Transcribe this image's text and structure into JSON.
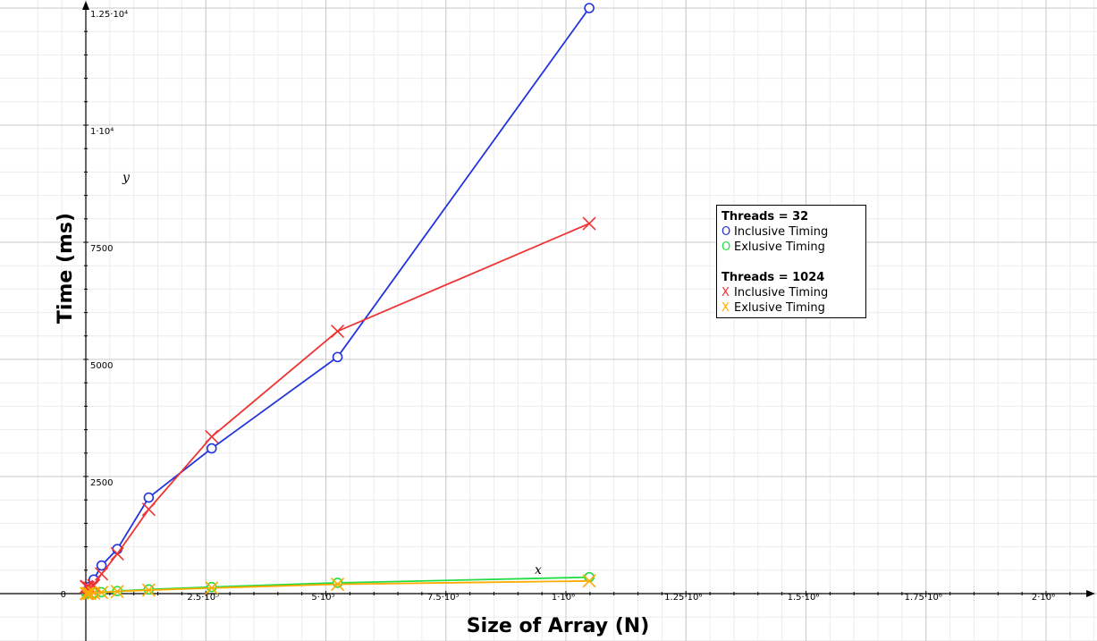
{
  "chart_data": {
    "type": "line",
    "xlabel": "Size of Array (N)",
    "ylabel": "Time (ms)",
    "x_var": "x",
    "y_var": "y",
    "xlim": [
      -100000,
      2100000
    ],
    "ylim": [
      -500,
      12500
    ],
    "grid": true,
    "legend_position": "right",
    "x_ticks": [
      {
        "value": 250000,
        "label": "2.5·10⁵"
      },
      {
        "value": 500000,
        "label": "5·10⁵"
      },
      {
        "value": 750000,
        "label": "7.5·10⁵"
      },
      {
        "value": 1000000,
        "label": "1·10⁶"
      },
      {
        "value": 1250000,
        "label": "1.25·10⁶"
      },
      {
        "value": 1500000,
        "label": "1.5·10⁶"
      },
      {
        "value": 1750000,
        "label": "1.75·10⁶"
      },
      {
        "value": 2000000,
        "label": "2·10⁶"
      }
    ],
    "y_ticks": [
      {
        "value": 0,
        "label": "0"
      },
      {
        "value": 2500,
        "label": "2500"
      },
      {
        "value": 5000,
        "label": "5000"
      },
      {
        "value": 7500,
        "label": "7500"
      },
      {
        "value": 10000,
        "label": "1·10⁴"
      },
      {
        "value": 12500,
        "label": "1.25·10⁴"
      }
    ],
    "series": [
      {
        "name": "Inclusive Timing",
        "group": "Threads = 32",
        "color": "#2233dd",
        "marker": "O",
        "x": [
          1024,
          2048,
          4096,
          8192,
          16384,
          32768,
          65536,
          131072,
          262144,
          524288,
          1048576
        ],
        "y": [
          20,
          40,
          80,
          150,
          300,
          600,
          950,
          2050,
          3100,
          5050,
          12500
        ]
      },
      {
        "name": "Exlusive Timing",
        "group": "Threads = 32",
        "color": "#22dd44",
        "marker": "O",
        "x": [
          1024,
          2048,
          4096,
          8192,
          16384,
          32768,
          65536,
          131072,
          262144,
          524288,
          1048576
        ],
        "y": [
          1,
          2,
          4,
          8,
          15,
          30,
          55,
          90,
          140,
          230,
          350
        ]
      },
      {
        "name": "Inclusive Timing",
        "group": "Threads = 1024",
        "color": "#ee3333",
        "marker": "X",
        "x": [
          1024,
          2048,
          4096,
          8192,
          16384,
          32768,
          65536,
          131072,
          262144,
          524288,
          1048576
        ],
        "y": [
          150,
          150,
          130,
          120,
          170,
          420,
          850,
          1800,
          3350,
          5600,
          7900
        ]
      },
      {
        "name": "Exlusive Timing",
        "group": "Threads = 1024",
        "color": "#ffaa00",
        "marker": "X",
        "x": [
          1024,
          2048,
          4096,
          8192,
          16384,
          32768,
          65536,
          131072,
          262144,
          524288,
          1048576
        ],
        "y": [
          1,
          2,
          3,
          6,
          12,
          25,
          45,
          75,
          120,
          200,
          270
        ]
      }
    ],
    "legend": {
      "group1_title": "Threads = 32",
      "group2_title": "Threads = 1024",
      "entries": [
        {
          "marker": "O",
          "label": "Inclusive Timing",
          "color": "#2233dd"
        },
        {
          "marker": "O",
          "label": "Exlusive Timing",
          "color": "#22dd44"
        },
        {
          "marker": "X",
          "label": "Inclusive Timing",
          "color": "#ee3333"
        },
        {
          "marker": "X",
          "label": "Exlusive Timing",
          "color": "#ffaa00"
        }
      ]
    }
  }
}
